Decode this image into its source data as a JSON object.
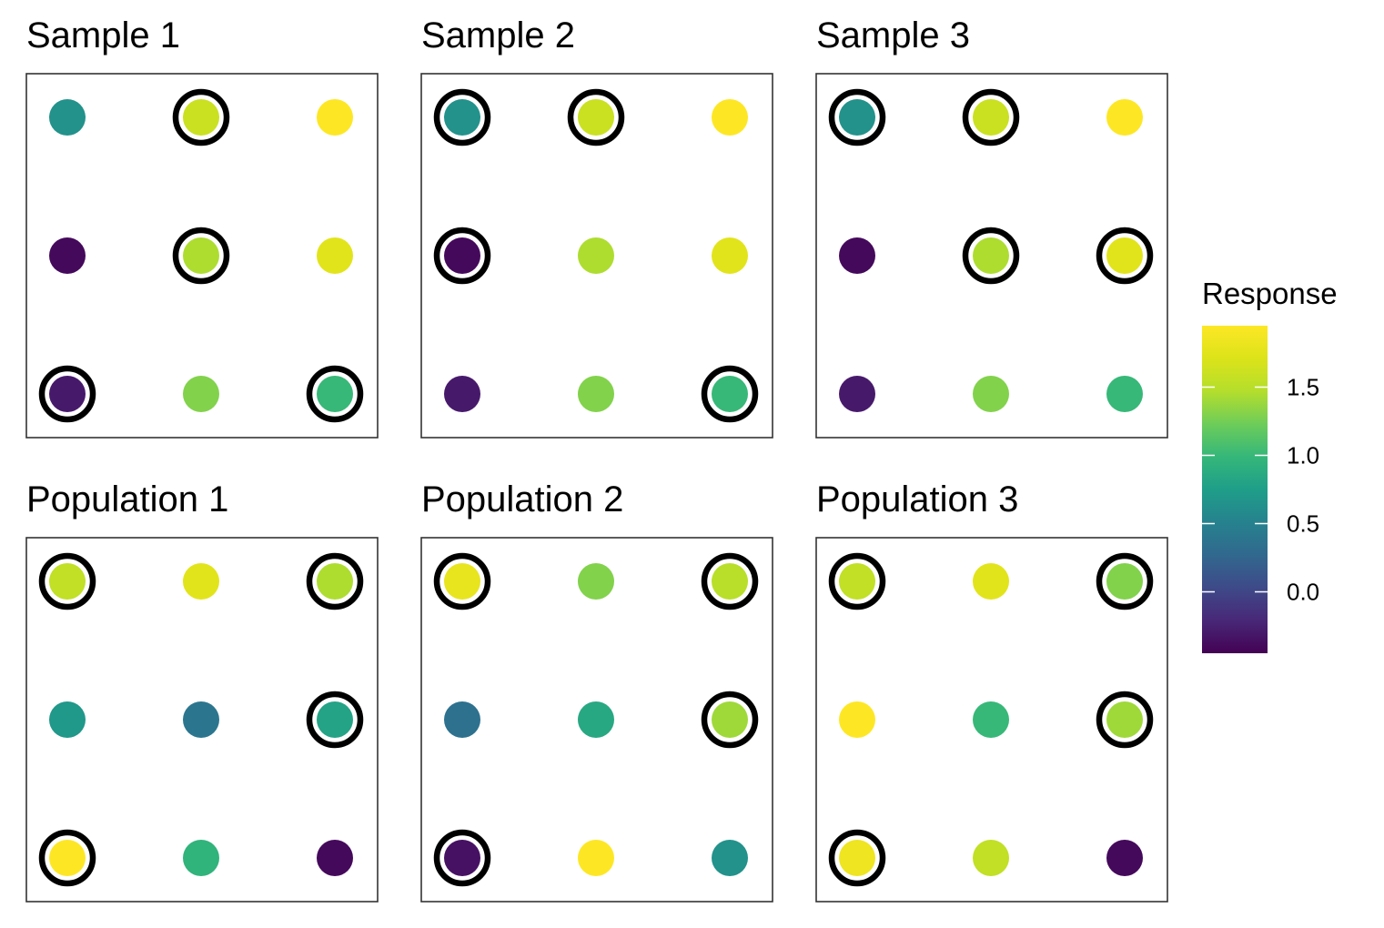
{
  "chart_data": {
    "type": "scatter",
    "panels": [
      {
        "title": "Sample 1",
        "points": [
          {
            "row": 1,
            "col": 1,
            "value": 0.65,
            "circled": false
          },
          {
            "row": 1,
            "col": 2,
            "value": 1.6,
            "circled": true
          },
          {
            "row": 1,
            "col": 3,
            "value": 1.95,
            "circled": false
          },
          {
            "row": 2,
            "col": 1,
            "value": -0.4,
            "circled": false
          },
          {
            "row": 2,
            "col": 2,
            "value": 1.45,
            "circled": true
          },
          {
            "row": 2,
            "col": 3,
            "value": 1.75,
            "circled": false
          },
          {
            "row": 3,
            "col": 1,
            "value": -0.3,
            "circled": true
          },
          {
            "row": 3,
            "col": 2,
            "value": 1.3,
            "circled": false
          },
          {
            "row": 3,
            "col": 3,
            "value": 1.0,
            "circled": true
          }
        ]
      },
      {
        "title": "Sample 2",
        "points": [
          {
            "row": 1,
            "col": 1,
            "value": 0.65,
            "circled": true
          },
          {
            "row": 1,
            "col": 2,
            "value": 1.6,
            "circled": true
          },
          {
            "row": 1,
            "col": 3,
            "value": 1.95,
            "circled": false
          },
          {
            "row": 2,
            "col": 1,
            "value": -0.4,
            "circled": true
          },
          {
            "row": 2,
            "col": 2,
            "value": 1.45,
            "circled": false
          },
          {
            "row": 2,
            "col": 3,
            "value": 1.75,
            "circled": false
          },
          {
            "row": 3,
            "col": 1,
            "value": -0.3,
            "circled": false
          },
          {
            "row": 3,
            "col": 2,
            "value": 1.3,
            "circled": false
          },
          {
            "row": 3,
            "col": 3,
            "value": 1.0,
            "circled": true
          }
        ]
      },
      {
        "title": "Sample 3",
        "points": [
          {
            "row": 1,
            "col": 1,
            "value": 0.65,
            "circled": true
          },
          {
            "row": 1,
            "col": 2,
            "value": 1.6,
            "circled": true
          },
          {
            "row": 1,
            "col": 3,
            "value": 1.95,
            "circled": false
          },
          {
            "row": 2,
            "col": 1,
            "value": -0.4,
            "circled": false
          },
          {
            "row": 2,
            "col": 2,
            "value": 1.45,
            "circled": true
          },
          {
            "row": 2,
            "col": 3,
            "value": 1.75,
            "circled": true
          },
          {
            "row": 3,
            "col": 1,
            "value": -0.3,
            "circled": false
          },
          {
            "row": 3,
            "col": 2,
            "value": 1.3,
            "circled": false
          },
          {
            "row": 3,
            "col": 3,
            "value": 1.0,
            "circled": false
          }
        ]
      },
      {
        "title": "Population 1",
        "points": [
          {
            "row": 1,
            "col": 1,
            "value": 1.55,
            "circled": true
          },
          {
            "row": 1,
            "col": 2,
            "value": 1.75,
            "circled": false
          },
          {
            "row": 1,
            "col": 3,
            "value": 1.45,
            "circled": true
          },
          {
            "row": 2,
            "col": 1,
            "value": 0.7,
            "circled": false
          },
          {
            "row": 2,
            "col": 2,
            "value": 0.4,
            "circled": false
          },
          {
            "row": 2,
            "col": 3,
            "value": 0.8,
            "circled": true
          },
          {
            "row": 3,
            "col": 1,
            "value": 1.97,
            "circled": true
          },
          {
            "row": 3,
            "col": 2,
            "value": 0.95,
            "circled": false
          },
          {
            "row": 3,
            "col": 3,
            "value": -0.4,
            "circled": false
          }
        ]
      },
      {
        "title": "Population 2",
        "points": [
          {
            "row": 1,
            "col": 1,
            "value": 1.8,
            "circled": true
          },
          {
            "row": 1,
            "col": 2,
            "value": 1.3,
            "circled": false
          },
          {
            "row": 1,
            "col": 3,
            "value": 1.5,
            "circled": true
          },
          {
            "row": 2,
            "col": 1,
            "value": 0.35,
            "circled": false
          },
          {
            "row": 2,
            "col": 2,
            "value": 0.85,
            "circled": false
          },
          {
            "row": 2,
            "col": 3,
            "value": 1.4,
            "circled": true
          },
          {
            "row": 3,
            "col": 1,
            "value": -0.35,
            "circled": true
          },
          {
            "row": 3,
            "col": 2,
            "value": 1.97,
            "circled": false
          },
          {
            "row": 3,
            "col": 3,
            "value": 0.65,
            "circled": false
          }
        ]
      },
      {
        "title": "Population 3",
        "points": [
          {
            "row": 1,
            "col": 1,
            "value": 1.55,
            "circled": true
          },
          {
            "row": 1,
            "col": 2,
            "value": 1.75,
            "circled": false
          },
          {
            "row": 1,
            "col": 3,
            "value": 1.3,
            "circled": true
          },
          {
            "row": 2,
            "col": 1,
            "value": 1.97,
            "circled": false
          },
          {
            "row": 2,
            "col": 2,
            "value": 1.0,
            "circled": false
          },
          {
            "row": 2,
            "col": 3,
            "value": 1.4,
            "circled": true
          },
          {
            "row": 3,
            "col": 1,
            "value": 1.85,
            "circled": true
          },
          {
            "row": 3,
            "col": 2,
            "value": 1.55,
            "circled": false
          },
          {
            "row": 3,
            "col": 3,
            "value": -0.4,
            "circled": false
          }
        ]
      }
    ],
    "colorbar": {
      "title": "Response",
      "palette": "viridis",
      "range": [
        -0.45,
        1.95
      ],
      "ticks": [
        {
          "value": 0.0,
          "label": "0.0"
        },
        {
          "value": 0.5,
          "label": "0.5"
        },
        {
          "value": 1.0,
          "label": "1.0"
        },
        {
          "value": 1.5,
          "label": "1.5"
        }
      ],
      "placement": "right"
    },
    "circle_color": "#000000",
    "grid": false
  }
}
